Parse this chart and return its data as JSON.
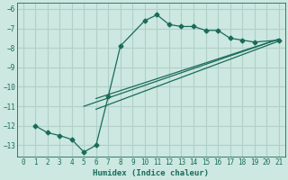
{
  "xlabel": "Humidex (Indice chaleur)",
  "ylabel": "",
  "bg_color": "#cce8e0",
  "grid_color": "#b0d0c8",
  "line_color": "#1a6b5a",
  "xlim": [
    -0.5,
    21.5
  ],
  "ylim": [
    -13.6,
    -5.7
  ],
  "yticks": [
    -6,
    -7,
    -8,
    -9,
    -10,
    -11,
    -12,
    -13
  ],
  "xticks": [
    0,
    1,
    2,
    3,
    4,
    5,
    6,
    7,
    8,
    9,
    10,
    11,
    12,
    13,
    14,
    15,
    16,
    17,
    18,
    19,
    20,
    21
  ],
  "curve1_x": [
    1,
    2,
    3,
    4,
    5,
    6,
    7,
    8,
    10,
    11,
    12,
    13,
    14,
    15,
    16,
    17,
    18,
    19,
    21
  ],
  "curve1_y": [
    -12.0,
    -12.35,
    -12.5,
    -12.7,
    -13.35,
    -13.0,
    -10.5,
    -7.9,
    -6.6,
    -6.3,
    -6.8,
    -6.9,
    -6.9,
    -7.1,
    -7.1,
    -7.5,
    -7.6,
    -7.7,
    -7.6
  ],
  "curve2_x": [
    5,
    21
  ],
  "curve2_y": [
    -11.0,
    -7.55
  ],
  "curve3_x": [
    6,
    21
  ],
  "curve3_y": [
    -10.6,
    -7.55
  ],
  "curve4_x": [
    6,
    21
  ],
  "curve4_y": [
    -11.15,
    -7.65
  ]
}
